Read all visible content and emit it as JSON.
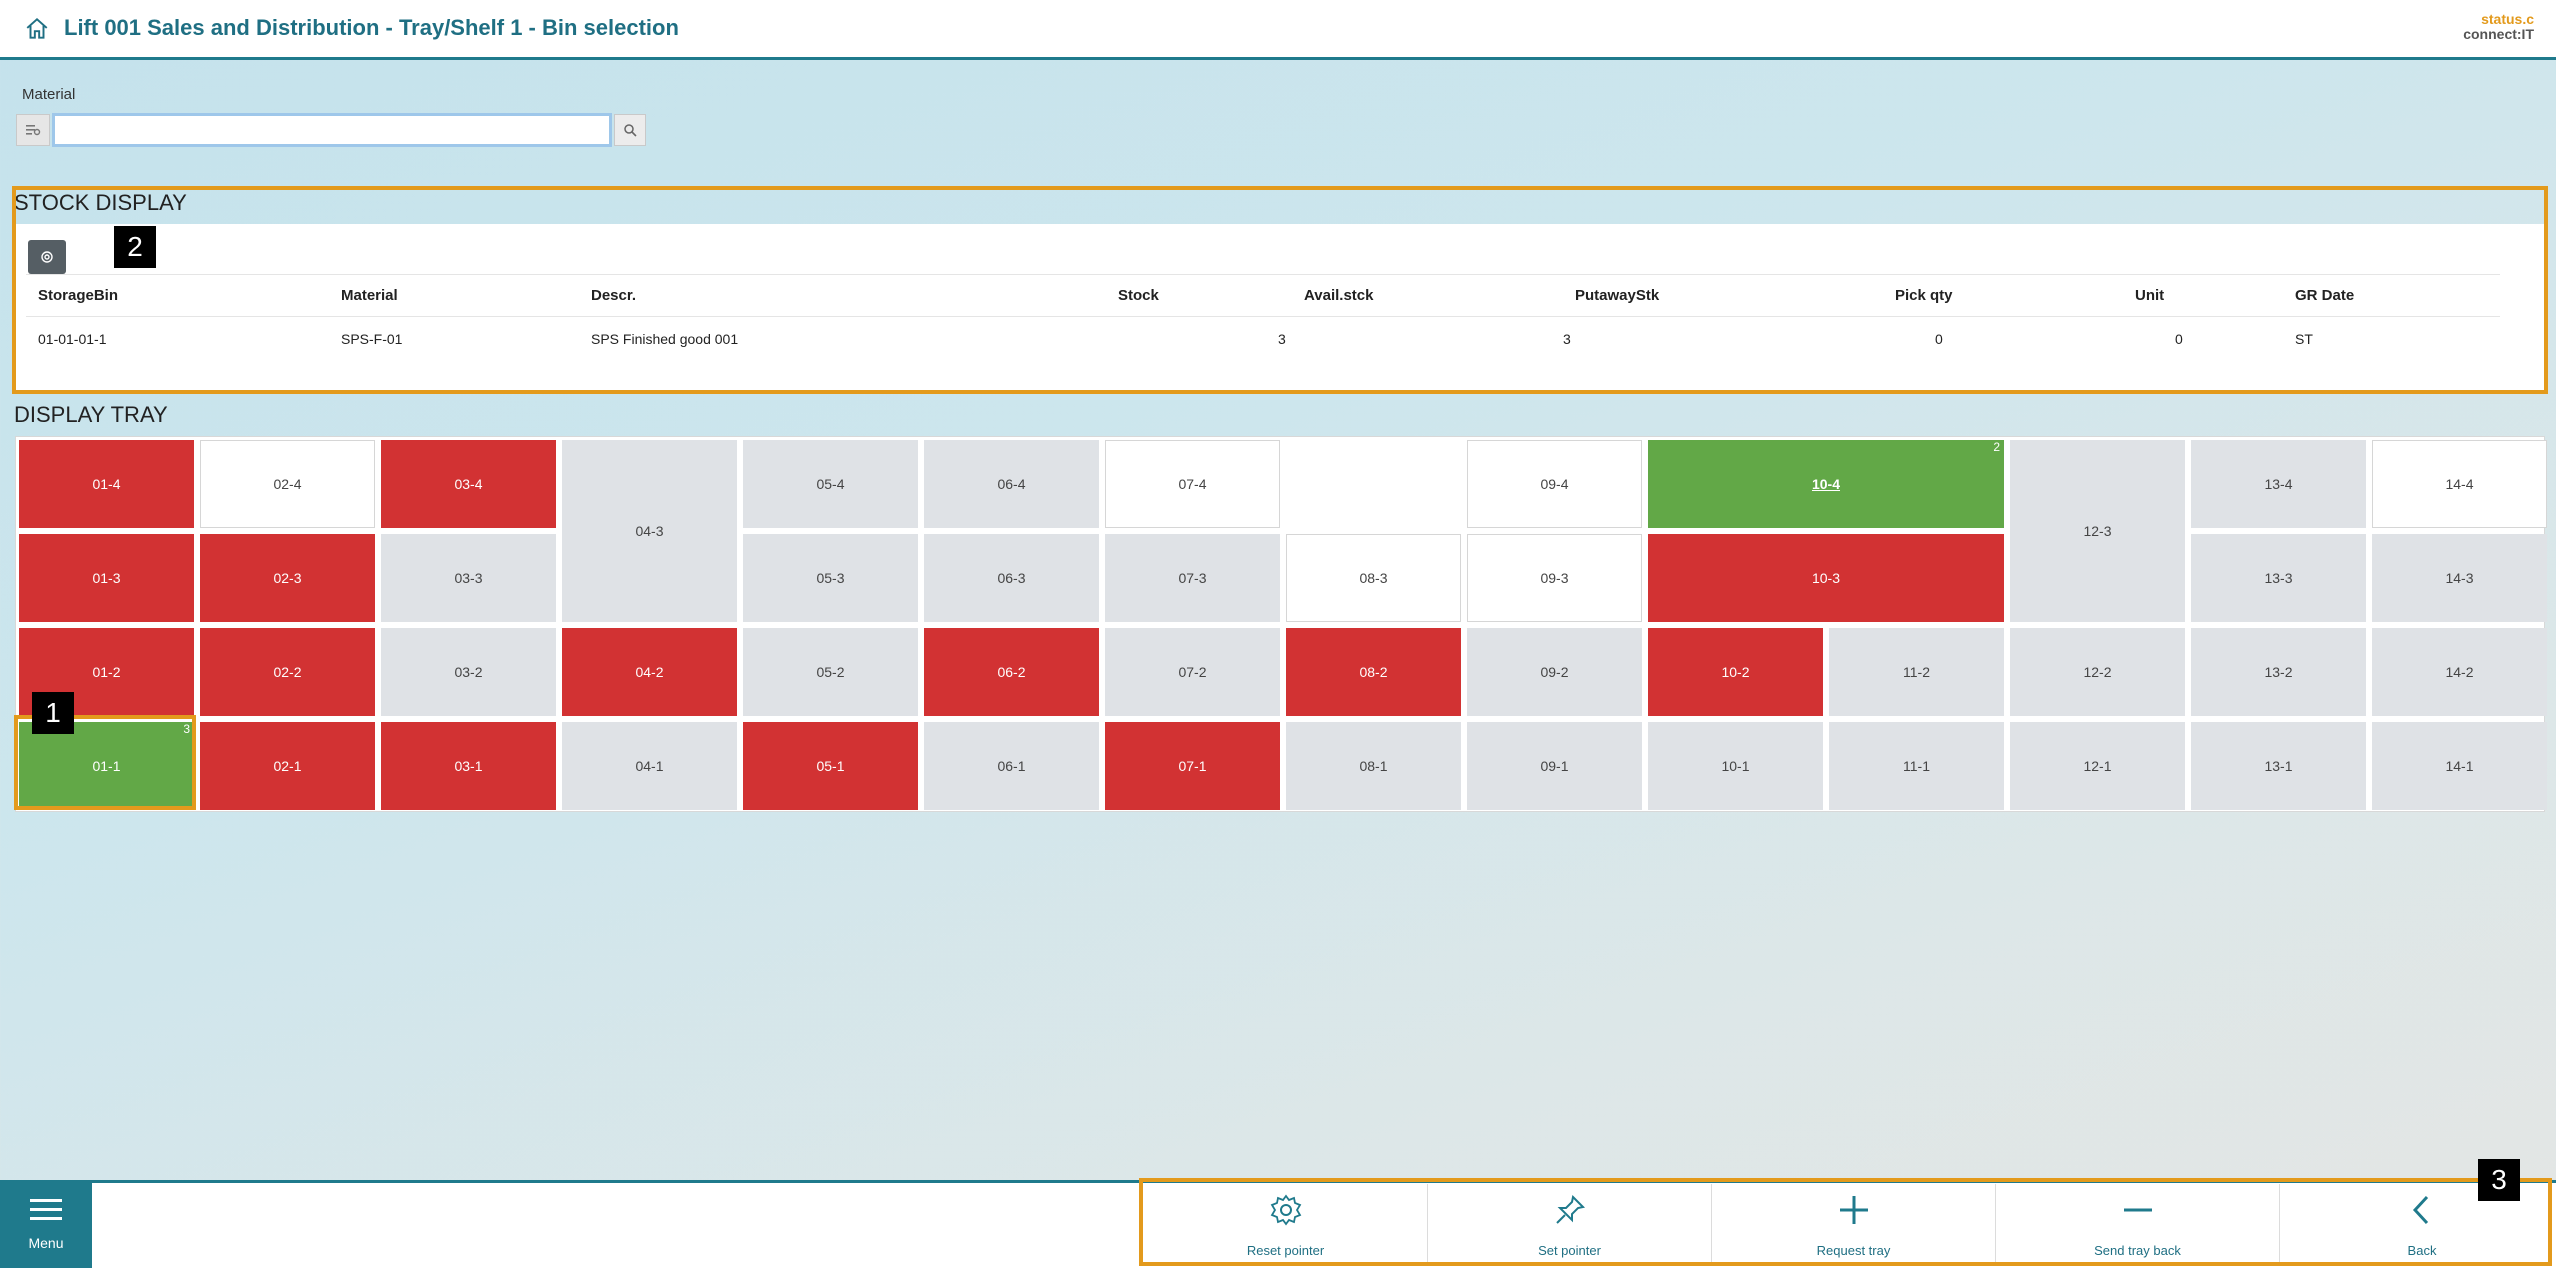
{
  "header": {
    "title": "Lift 001 Sales and Distribution - Tray/Shelf 1 - Bin selection",
    "brand_top": "status.c",
    "brand_bottom": "connect:IT"
  },
  "search": {
    "label": "Material",
    "value": "",
    "placeholder": ""
  },
  "markers": [
    "1",
    "2",
    "3"
  ],
  "stock": {
    "title": "STOCK DISPLAY",
    "columns": [
      "StorageBin",
      "Material",
      "Descr.",
      "Stock",
      "Avail.stck",
      "PutawayStk",
      "Pick qty",
      "Unit",
      "GR Date"
    ],
    "rows": [
      [
        "01-01-01-1",
        "SPS-F-01",
        "SPS Finished good 001",
        "3",
        "3",
        "0",
        "0",
        "ST",
        ""
      ]
    ]
  },
  "tray": {
    "title": "DISPLAY TRAY",
    "cells": [
      {
        "label": "01-4",
        "state": "red"
      },
      {
        "label": "02-4",
        "state": "white"
      },
      {
        "label": "03-4",
        "state": "red"
      },
      {
        "label": "04-3",
        "state": "grey"
      },
      {
        "label": "05-4",
        "state": "grey"
      },
      {
        "label": "06-4",
        "state": "grey"
      },
      {
        "label": "07-4",
        "state": "white"
      },
      {
        "label": "09-4",
        "state": "white"
      },
      {
        "label": "10-4",
        "state": "green",
        "badge": "2"
      },
      {
        "label": "12-3",
        "state": "grey"
      },
      {
        "label": "13-4",
        "state": "grey"
      },
      {
        "label": "14-4",
        "state": "white"
      },
      {
        "label": "01-3",
        "state": "red"
      },
      {
        "label": "02-3",
        "state": "red"
      },
      {
        "label": "03-3",
        "state": "grey"
      },
      {
        "label": "05-3",
        "state": "grey"
      },
      {
        "label": "06-3",
        "state": "grey"
      },
      {
        "label": "07-3",
        "state": "grey"
      },
      {
        "label": "08-3",
        "state": "white"
      },
      {
        "label": "09-3",
        "state": "white"
      },
      {
        "label": "10-3",
        "state": "red"
      },
      {
        "label": "13-3",
        "state": "grey"
      },
      {
        "label": "14-3",
        "state": "grey"
      },
      {
        "label": "01-2",
        "state": "red"
      },
      {
        "label": "02-2",
        "state": "red"
      },
      {
        "label": "03-2",
        "state": "grey"
      },
      {
        "label": "04-2",
        "state": "red"
      },
      {
        "label": "05-2",
        "state": "grey"
      },
      {
        "label": "06-2",
        "state": "red"
      },
      {
        "label": "07-2",
        "state": "grey"
      },
      {
        "label": "08-2",
        "state": "red"
      },
      {
        "label": "09-2",
        "state": "grey"
      },
      {
        "label": "10-2",
        "state": "red"
      },
      {
        "label": "11-2",
        "state": "grey"
      },
      {
        "label": "12-2",
        "state": "grey"
      },
      {
        "label": "13-2",
        "state": "grey"
      },
      {
        "label": "14-2",
        "state": "grey"
      },
      {
        "label": "01-1",
        "state": "green",
        "badge": "3"
      },
      {
        "label": "02-1",
        "state": "red"
      },
      {
        "label": "03-1",
        "state": "red"
      },
      {
        "label": "04-1",
        "state": "grey"
      },
      {
        "label": "05-1",
        "state": "red"
      },
      {
        "label": "06-1",
        "state": "grey"
      },
      {
        "label": "07-1",
        "state": "red"
      },
      {
        "label": "08-1",
        "state": "grey"
      },
      {
        "label": "09-1",
        "state": "grey"
      },
      {
        "label": "10-1",
        "state": "grey"
      },
      {
        "label": "11-1",
        "state": "grey"
      },
      {
        "label": "12-1",
        "state": "grey"
      },
      {
        "label": "13-1",
        "state": "grey"
      },
      {
        "label": "14-1",
        "state": "grey"
      }
    ]
  },
  "footer": {
    "menu_label": "Menu",
    "actions": [
      {
        "label": "Reset pointer",
        "icon": "gear-icon"
      },
      {
        "label": "Set pointer",
        "icon": "pin-icon"
      },
      {
        "label": "Request tray",
        "icon": "plus-icon"
      },
      {
        "label": "Send tray back",
        "icon": "minus-icon"
      },
      {
        "label": "Back",
        "icon": "chevron-left-icon"
      }
    ]
  },
  "colors": {
    "accent": "#1f7a8c",
    "highlight": "#e39a1c",
    "occupied": "#d23233",
    "selected": "#62a847",
    "empty": "#dfe2e6"
  }
}
